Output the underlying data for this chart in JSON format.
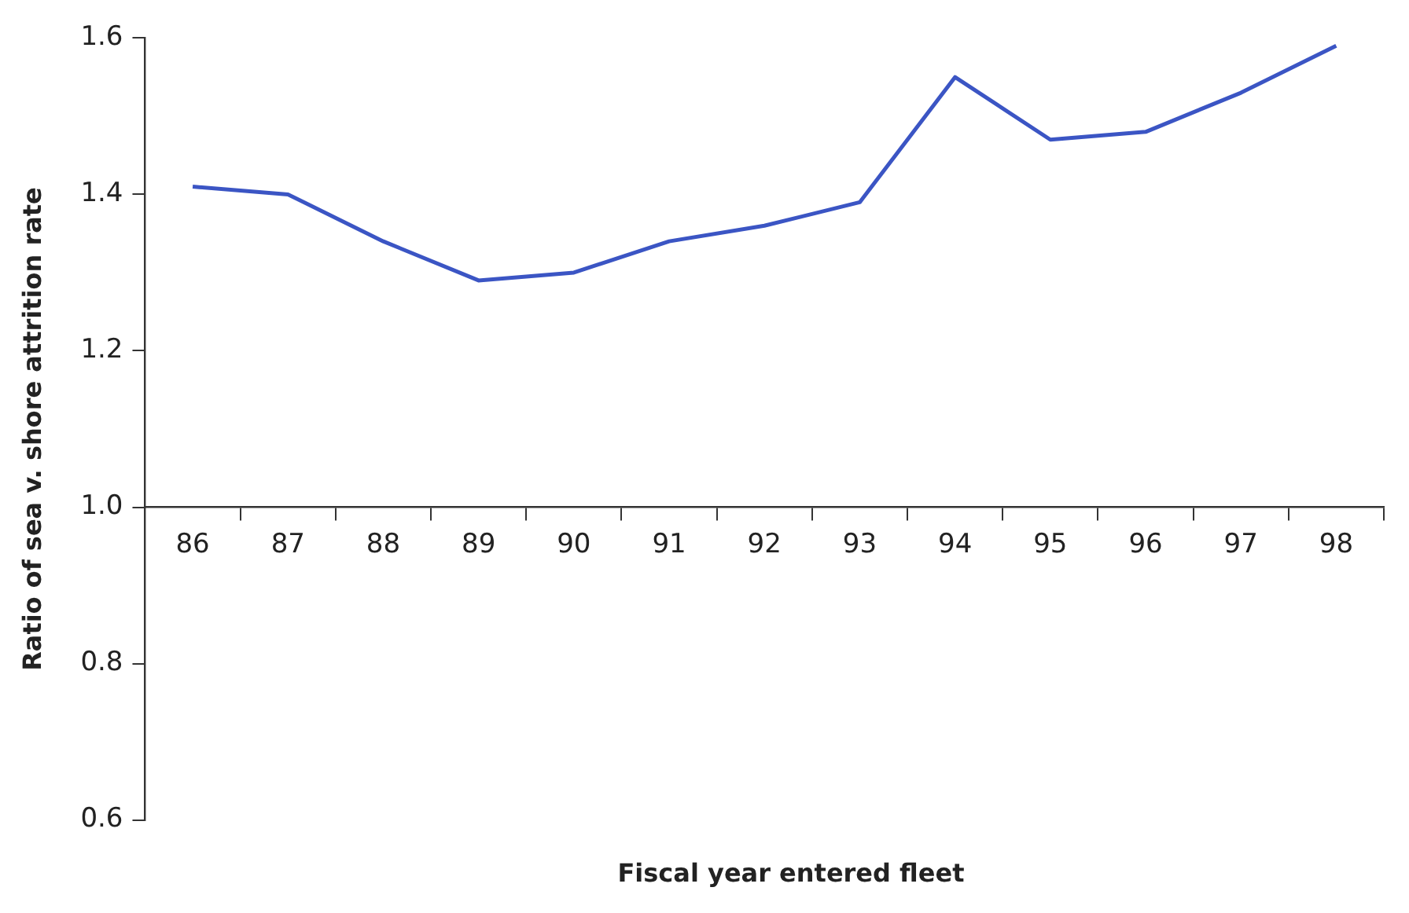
{
  "chart_data": {
    "type": "line",
    "xlabel": "Fiscal year entered fleet",
    "ylabel": "Ratio of sea v. shore attrition rate",
    "categories": [
      "86",
      "87",
      "88",
      "89",
      "90",
      "91",
      "92",
      "93",
      "94",
      "95",
      "96",
      "97",
      "98"
    ],
    "series": [
      {
        "color": "#3b55c4",
        "values": [
          1.41,
          1.4,
          1.34,
          1.29,
          1.3,
          1.34,
          1.36,
          1.39,
          1.55,
          1.47,
          1.48,
          1.53,
          1.59
        ]
      }
    ],
    "ylim": [
      0.6,
      1.6
    ],
    "yticks": [
      {
        "value": 0.6,
        "label": "0.6"
      },
      {
        "value": 0.8,
        "label": "0.8"
      },
      {
        "value": 1,
        "label": "1.0"
      },
      {
        "value": 1.2,
        "label": "1.2"
      },
      {
        "value": 1.4,
        "label": "1.4"
      },
      {
        "value": 1.6,
        "label": "1.6"
      }
    ],
    "marker": "none",
    "line_style": "solid",
    "legend": false
  }
}
